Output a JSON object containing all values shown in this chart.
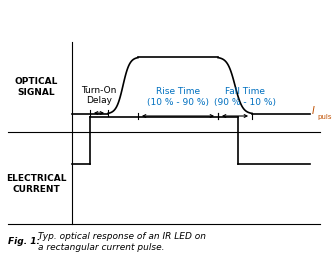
{
  "bg_color": "#ffffff",
  "line_color": "#000000",
  "text_color_blue": "#0070C0",
  "text_color_orange": "#C05000",
  "text_color_black": "#000000",
  "fig_width": 3.32,
  "fig_height": 2.72,
  "optical_label": "OPTICAL\nSIGNAL",
  "electrical_label": "ELECTRICAL\nCURRENT",
  "turn_on_label": "Turn-On\nDelay",
  "rise_time_label": "Rise Time\n(10 % - 90 %)",
  "fall_time_label": "Fall Time\n(90 % - 10 %)",
  "ipulse_label": "I",
  "ipulse_sub": "pulse",
  "caption_bold": "Fig. 1: ",
  "caption_italic": "Typ. optical response of an IR LED on\na rectangular current pulse."
}
